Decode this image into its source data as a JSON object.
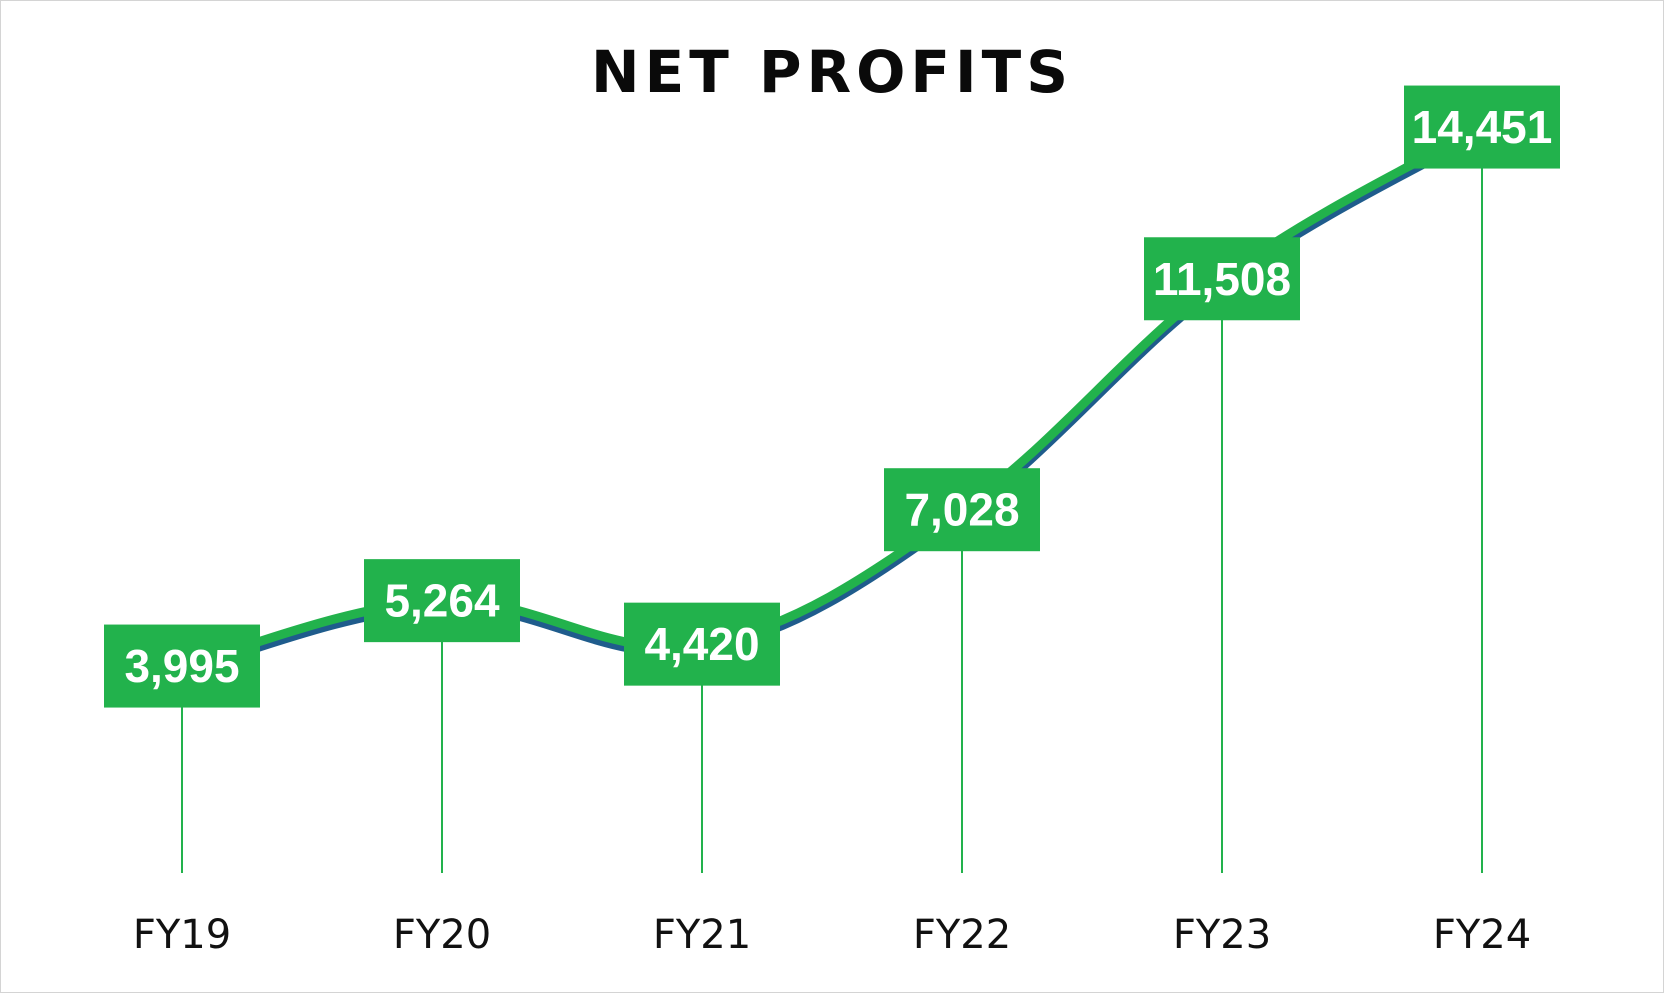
{
  "chart_data": {
    "type": "line",
    "title": "NET PROFITS",
    "xlabel": "",
    "ylabel": "",
    "categories": [
      "FY19",
      "FY20",
      "FY21",
      "FY22",
      "FY23",
      "FY24"
    ],
    "series": [
      {
        "values": [
          3995,
          5264,
          4420,
          7028,
          11508,
          14451
        ],
        "labels": [
          "3,995",
          "5,264",
          "4,420",
          "7,028",
          "11,508",
          "14,451"
        ]
      }
    ],
    "ylim": [
      0,
      16000
    ],
    "grid": false,
    "legend": "none",
    "data_labels": true,
    "colors": {
      "line": "#22b24c",
      "line_shadow": "#1f5c8c",
      "label_box": "#22b24c",
      "label_text": "#ffffff",
      "drop_line": "#22b24c"
    }
  }
}
